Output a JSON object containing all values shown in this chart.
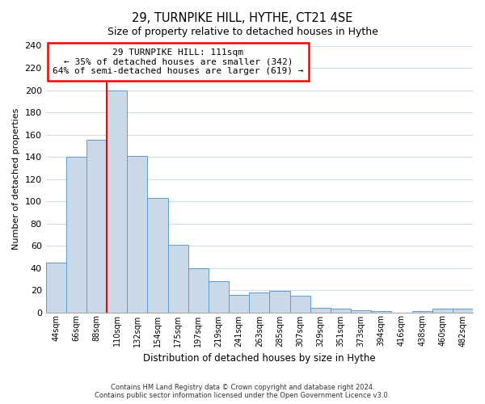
{
  "title": "29, TURNPIKE HILL, HYTHE, CT21 4SE",
  "subtitle": "Size of property relative to detached houses in Hythe",
  "xlabel": "Distribution of detached houses by size in Hythe",
  "ylabel": "Number of detached properties",
  "bar_labels": [
    "44sqm",
    "66sqm",
    "88sqm",
    "110sqm",
    "132sqm",
    "154sqm",
    "175sqm",
    "197sqm",
    "219sqm",
    "241sqm",
    "263sqm",
    "285sqm",
    "307sqm",
    "329sqm",
    "351sqm",
    "373sqm",
    "394sqm",
    "416sqm",
    "438sqm",
    "460sqm",
    "482sqm"
  ],
  "bar_heights": [
    45,
    140,
    155,
    200,
    141,
    103,
    61,
    40,
    28,
    16,
    18,
    19,
    15,
    4,
    3,
    2,
    1,
    0,
    1,
    3,
    3
  ],
  "bar_color": "#c9d9e8",
  "bar_edgecolor": "#5b9bd5",
  "red_line_index": 3,
  "ylim": [
    0,
    240
  ],
  "yticks": [
    0,
    20,
    40,
    60,
    80,
    100,
    120,
    140,
    160,
    180,
    200,
    220,
    240
  ],
  "annotation_title": "29 TURNPIKE HILL: 111sqm",
  "annotation_line1": "← 35% of detached houses are smaller (342)",
  "annotation_line2": "64% of semi-detached houses are larger (619) →",
  "footer1": "Contains HM Land Registry data © Crown copyright and database right 2024.",
  "footer2": "Contains public sector information licensed under the Open Government Licence v3.0.",
  "background_color": "#ffffff",
  "plot_background": "#ffffff",
  "grid_color": "#d0dce8"
}
